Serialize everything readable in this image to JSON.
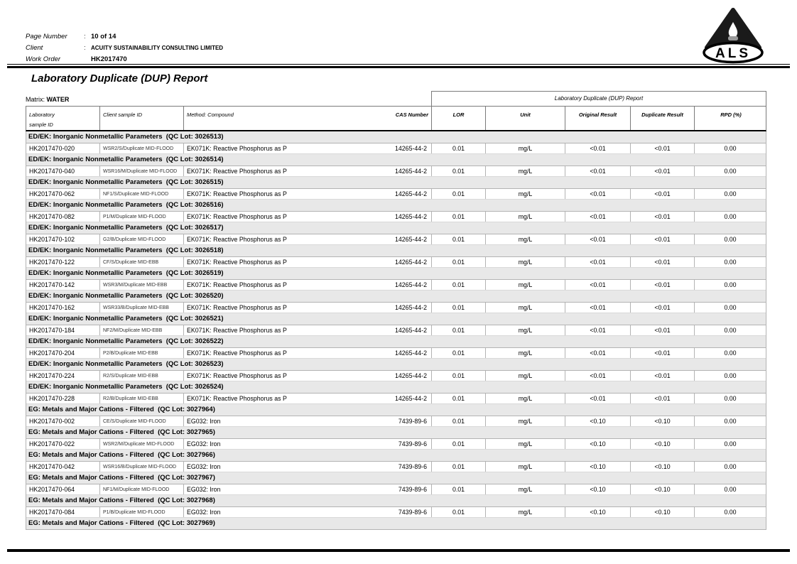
{
  "page": {
    "header": {
      "fields": [
        {
          "label": "Page Number",
          "sep": ":",
          "value": "10 of 14"
        },
        {
          "label": "Client",
          "sep": ":",
          "value": "ACUITY SUSTAINABILITY CONSULTING LIMITED"
        },
        {
          "label": "Work Order",
          "sep": "",
          "value": "HK2017470"
        }
      ],
      "logo_text": "ALS"
    },
    "title": "Laboratory Duplicate (DUP) Report",
    "matrix_label": "Matrix:",
    "matrix_value": "WATER",
    "table": {
      "span_header": "Laboratory Duplicate (DUP) Report",
      "columns": {
        "lab_line1": "Laboratory",
        "lab_line2": "sample ID",
        "client": "Client sample ID",
        "method": "Method: Compound",
        "cas": "CAS Number",
        "lor": "LOR",
        "unit": "Unit",
        "original": "Original Result",
        "duplicate": "Duplicate Result",
        "rpd": "RPD (%)"
      },
      "sections": [
        {
          "title": "ED/EK: Inorganic Nonmetallic Parameters  (QC Lot: 3026513)",
          "row": {
            "lab_id": "HK2017470-020",
            "client_id": "WSR2/S/Duplicate MID-FLOOD",
            "method": "EK071K: Reactive Phosphorus as P",
            "cas": "14265-44-2",
            "lor": "0.01",
            "unit": "mg/L",
            "original": "<0.01",
            "duplicate": "<0.01",
            "rpd": "0.00"
          }
        },
        {
          "title": "ED/EK: Inorganic Nonmetallic Parameters  (QC Lot: 3026514)",
          "row": {
            "lab_id": "HK2017470-040",
            "client_id": "WSR16/M/Duplicate MID-FLOOD",
            "method": "EK071K: Reactive Phosphorus as P",
            "cas": "14265-44-2",
            "lor": "0.01",
            "unit": "mg/L",
            "original": "<0.01",
            "duplicate": "<0.01",
            "rpd": "0.00"
          }
        },
        {
          "title": "ED/EK: Inorganic Nonmetallic Parameters  (QC Lot: 3026515)",
          "row": {
            "lab_id": "HK2017470-062",
            "client_id": "NF1/S/Duplicate MID-FLOOD",
            "method": "EK071K: Reactive Phosphorus as P",
            "cas": "14265-44-2",
            "lor": "0.01",
            "unit": "mg/L",
            "original": "<0.01",
            "duplicate": "<0.01",
            "rpd": "0.00"
          }
        },
        {
          "title": "ED/EK: Inorganic Nonmetallic Parameters  (QC Lot: 3026516)",
          "row": {
            "lab_id": "HK2017470-082",
            "client_id": "P1/M/Duplicate MID-FLOOD",
            "method": "EK071K: Reactive Phosphorus as P",
            "cas": "14265-44-2",
            "lor": "0.01",
            "unit": "mg/L",
            "original": "<0.01",
            "duplicate": "<0.01",
            "rpd": "0.00"
          }
        },
        {
          "title": "ED/EK: Inorganic Nonmetallic Parameters  (QC Lot: 3026517)",
          "row": {
            "lab_id": "HK2017470-102",
            "client_id": "G2/B/Duplicate MID-FLOOD",
            "method": "EK071K: Reactive Phosphorus as P",
            "cas": "14265-44-2",
            "lor": "0.01",
            "unit": "mg/L",
            "original": "<0.01",
            "duplicate": "<0.01",
            "rpd": "0.00"
          }
        },
        {
          "title": "ED/EK: Inorganic Nonmetallic Parameters  (QC Lot: 3026518)",
          "row": {
            "lab_id": "HK2017470-122",
            "client_id": "CF/S/Duplicate MID-EBB",
            "method": "EK071K: Reactive Phosphorus as P",
            "cas": "14265-44-2",
            "lor": "0.01",
            "unit": "mg/L",
            "original": "<0.01",
            "duplicate": "<0.01",
            "rpd": "0.00"
          }
        },
        {
          "title": "ED/EK: Inorganic Nonmetallic Parameters  (QC Lot: 3026519)",
          "row": {
            "lab_id": "HK2017470-142",
            "client_id": "WSR3/M/Duplicate MID-EBB",
            "method": "EK071K: Reactive Phosphorus as P",
            "cas": "14265-44-2",
            "lor": "0.01",
            "unit": "mg/L",
            "original": "<0.01",
            "duplicate": "<0.01",
            "rpd": "0.00"
          }
        },
        {
          "title": "ED/EK: Inorganic Nonmetallic Parameters  (QC Lot: 3026520)",
          "row": {
            "lab_id": "HK2017470-162",
            "client_id": "WSR33/B/Duplicate MID-EBB",
            "method": "EK071K: Reactive Phosphorus as P",
            "cas": "14265-44-2",
            "lor": "0.01",
            "unit": "mg/L",
            "original": "<0.01",
            "duplicate": "<0.01",
            "rpd": "0.00"
          }
        },
        {
          "title": "ED/EK: Inorganic Nonmetallic Parameters  (QC Lot: 3026521)",
          "row": {
            "lab_id": "HK2017470-184",
            "client_id": "NF2/M/Duplicate MID-EBB",
            "method": "EK071K: Reactive Phosphorus as P",
            "cas": "14265-44-2",
            "lor": "0.01",
            "unit": "mg/L",
            "original": "<0.01",
            "duplicate": "<0.01",
            "rpd": "0.00"
          }
        },
        {
          "title": "ED/EK: Inorganic Nonmetallic Parameters  (QC Lot: 3026522)",
          "row": {
            "lab_id": "HK2017470-204",
            "client_id": "P2/B/Duplicate MID-EBB",
            "method": "EK071K: Reactive Phosphorus as P",
            "cas": "14265-44-2",
            "lor": "0.01",
            "unit": "mg/L",
            "original": "<0.01",
            "duplicate": "<0.01",
            "rpd": "0.00"
          }
        },
        {
          "title": "ED/EK: Inorganic Nonmetallic Parameters  (QC Lot: 3026523)",
          "row": {
            "lab_id": "HK2017470-224",
            "client_id": "R2/S/Duplicate MID-EBB",
            "method": "EK071K: Reactive Phosphorus as P",
            "cas": "14265-44-2",
            "lor": "0.01",
            "unit": "mg/L",
            "original": "<0.01",
            "duplicate": "<0.01",
            "rpd": "0.00"
          }
        },
        {
          "title": "ED/EK: Inorganic Nonmetallic Parameters  (QC Lot: 3026524)",
          "row": {
            "lab_id": "HK2017470-228",
            "client_id": "R2/B/Duplicate MID-EBB",
            "method": "EK071K: Reactive Phosphorus as P",
            "cas": "14265-44-2",
            "lor": "0.01",
            "unit": "mg/L",
            "original": "<0.01",
            "duplicate": "<0.01",
            "rpd": "0.00"
          }
        },
        {
          "title": "EG: Metals and Major Cations - Filtered  (QC Lot: 3027964)",
          "row": {
            "lab_id": "HK2017470-002",
            "client_id": "CE/S/Duplicate MID-FLOOD",
            "method": "EG032: Iron",
            "cas": "7439-89-6",
            "lor": "0.01",
            "unit": "mg/L",
            "original": "<0.10",
            "duplicate": "<0.10",
            "rpd": "0.00"
          }
        },
        {
          "title": "EG: Metals and Major Cations - Filtered  (QC Lot: 3027965)",
          "row": {
            "lab_id": "HK2017470-022",
            "client_id": "WSR2/M/Duplicate MID-FLOOD",
            "method": "EG032: Iron",
            "cas": "7439-89-6",
            "lor": "0.01",
            "unit": "mg/L",
            "original": "<0.10",
            "duplicate": "<0.10",
            "rpd": "0.00"
          }
        },
        {
          "title": "EG: Metals and Major Cations - Filtered  (QC Lot: 3027966)",
          "row": {
            "lab_id": "HK2017470-042",
            "client_id": "WSR16/B/Duplicate MID-FLOOD",
            "method": "EG032: Iron",
            "cas": "7439-89-6",
            "lor": "0.01",
            "unit": "mg/L",
            "original": "<0.10",
            "duplicate": "<0.10",
            "rpd": "0.00"
          }
        },
        {
          "title": "EG: Metals and Major Cations - Filtered  (QC Lot: 3027967)",
          "row": {
            "lab_id": "HK2017470-064",
            "client_id": "NF1/M/Duplicate MID-FLOOD",
            "method": "EG032: Iron",
            "cas": "7439-89-6",
            "lor": "0.01",
            "unit": "mg/L",
            "original": "<0.10",
            "duplicate": "<0.10",
            "rpd": "0.00"
          }
        },
        {
          "title": "EG: Metals and Major Cations - Filtered  (QC Lot: 3027968)",
          "row": {
            "lab_id": "HK2017470-084",
            "client_id": "P1/B/Duplicate MID-FLOOD",
            "method": "EG032: Iron",
            "cas": "7439-89-6",
            "lor": "0.01",
            "unit": "mg/L",
            "original": "<0.10",
            "duplicate": "<0.10",
            "rpd": "0.00"
          }
        },
        {
          "title": "EG: Metals and Major Cations - Filtered  (QC Lot: 3027969)",
          "row": null
        }
      ]
    }
  }
}
